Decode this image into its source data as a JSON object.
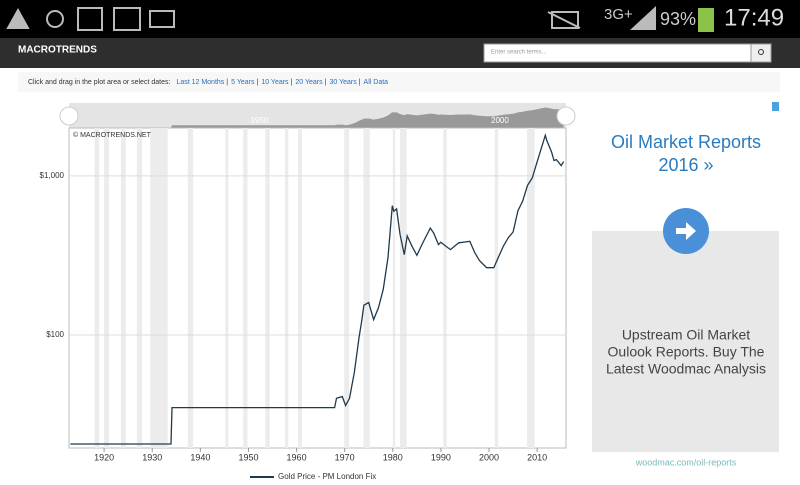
{
  "status_bar": {
    "network": "3G+",
    "battery": "93%",
    "time": "17:49"
  },
  "header": {
    "brand": "MACROTRENDS",
    "search_placeholder": "Enter search terms..."
  },
  "date_bar": {
    "prompt": "Click and drag in the plot area or select dates:",
    "separator": "|",
    "links": [
      "Last 12 Months",
      "5 Years",
      "10 Years",
      "20 Years",
      "30 Years",
      "All Data"
    ]
  },
  "chart_data": {
    "type": "line",
    "credit": "© MACROTRENDS.NET",
    "log_scale": true,
    "grid": true,
    "x": [
      1913,
      1931.5,
      1933.9,
      1934.1,
      1967.9,
      1968.3,
      1969.5,
      1970.2,
      1971,
      1972,
      1973,
      1973.5,
      1974,
      1975,
      1976,
      1977,
      1978,
      1979,
      1979.9,
      1980.2,
      1980.8,
      1981.5,
      1982.4,
      1983,
      1984,
      1985,
      1986,
      1987.8,
      1988.5,
      1989.5,
      1990,
      1991,
      1992,
      1993.7,
      1995,
      1996,
      1997,
      1998,
      1999.5,
      2001,
      2002,
      2003,
      2004,
      2005,
      2006,
      2007,
      2008,
      2009,
      2010,
      2011.7,
      2012,
      2013,
      2013.5,
      2014,
      2015,
      2015.5
    ],
    "series": [
      {
        "name": "Gold Price - PM London Fix",
        "color": "#1f3a4d",
        "values": [
          20.67,
          20.67,
          20.67,
          35,
          35,
          40,
          41,
          36,
          40,
          58,
          97,
          120,
          154,
          160,
          125,
          148,
          193,
          307,
          650,
          600,
          620,
          430,
          320,
          420,
          361,
          317,
          368,
          470,
          437,
          370,
          383,
          362,
          344,
          380,
          384,
          388,
          331,
          294,
          265,
          265,
          310,
          363,
          409,
          444,
          603,
          695,
          872,
          972,
          1225,
          1800,
          1669,
          1411,
          1250,
          1266,
          1160,
          1230
        ]
      }
    ],
    "recessions": [
      [
        1918,
        1919
      ],
      [
        1920,
        1921
      ],
      [
        1923.5,
        1924.5
      ],
      [
        1926.8,
        1927.9
      ],
      [
        1929.6,
        1933.2
      ],
      [
        1937.4,
        1938.5
      ],
      [
        1945.2,
        1945.8
      ],
      [
        1948.9,
        1949.8
      ],
      [
        1953.5,
        1954.4
      ],
      [
        1957.6,
        1958.3
      ],
      [
        1960.3,
        1961.1
      ],
      [
        1969.9,
        1970.9
      ],
      [
        1973.9,
        1975.2
      ],
      [
        1980,
        1980.5
      ],
      [
        1981.5,
        1982.9
      ],
      [
        1990.5,
        1991.2
      ],
      [
        2001.2,
        2001.9
      ],
      [
        2007.9,
        2009.5
      ]
    ],
    "xlim": [
      1912.7,
      2016
    ],
    "xticks": [
      1920,
      1930,
      1940,
      1950,
      1960,
      1970,
      1980,
      1990,
      2000,
      2010
    ],
    "ylim": [
      19.5,
      2000
    ],
    "yticks": [
      {
        "value": 100,
        "label": "$100"
      },
      {
        "value": 1000,
        "label": "$1,000"
      }
    ],
    "navigator_ticks": [
      1950,
      2000
    ]
  },
  "ad": {
    "title_lines": [
      "Oil Market Reports",
      "2016 »"
    ],
    "body_lines": [
      "Upstream Oil Market",
      "Oulook Reports. Buy The",
      "Latest Woodmac Analysis"
    ],
    "url": "woodmac.com/oil-reports"
  }
}
